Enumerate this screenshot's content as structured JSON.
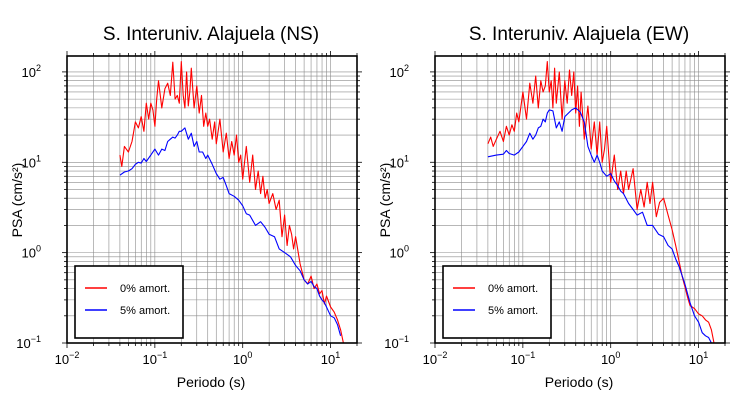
{
  "chart_data": [
    {
      "type": "line",
      "title": "S. Interuniv. Alajuela (NS)",
      "xlabel": "Periodo (s)",
      "ylabel": "PSA (cm/s²)",
      "xscale": "log",
      "yscale": "log",
      "xlim": [
        0.01,
        20
      ],
      "ylim": [
        0.1,
        150
      ],
      "grid": true,
      "legend_position": "bottom-left",
      "x_ticks": [
        {
          "value": 0.01,
          "base": "10",
          "exp": "−2"
        },
        {
          "value": 0.1,
          "base": "10",
          "exp": "−1"
        },
        {
          "value": 1,
          "base": "10",
          "exp": "0"
        },
        {
          "value": 10,
          "base": "10",
          "exp": "1"
        }
      ],
      "y_ticks": [
        {
          "value": 0.1,
          "label": "10",
          "exp": "−1"
        },
        {
          "value": 1,
          "label": "10",
          "exp": "0"
        },
        {
          "value": 10,
          "label": "10",
          "exp": "1"
        },
        {
          "value": 100,
          "label": "10",
          "exp": "2"
        }
      ],
      "series": [
        {
          "name": "0% amort.",
          "color": "#ff0000",
          "x": [
            0.04,
            0.042,
            0.045,
            0.05,
            0.055,
            0.06,
            0.065,
            0.07,
            0.075,
            0.08,
            0.085,
            0.09,
            0.095,
            0.1,
            0.105,
            0.11,
            0.12,
            0.13,
            0.14,
            0.15,
            0.16,
            0.17,
            0.18,
            0.19,
            0.2,
            0.21,
            0.22,
            0.23,
            0.24,
            0.25,
            0.26,
            0.28,
            0.3,
            0.32,
            0.34,
            0.36,
            0.38,
            0.4,
            0.42,
            0.45,
            0.48,
            0.5,
            0.55,
            0.6,
            0.65,
            0.7,
            0.75,
            0.8,
            0.85,
            0.9,
            0.95,
            1.0,
            1.1,
            1.2,
            1.3,
            1.4,
            1.5,
            1.6,
            1.7,
            1.8,
            1.9,
            2.0,
            2.2,
            2.4,
            2.6,
            2.8,
            3.0,
            3.2,
            3.4,
            3.6,
            3.8,
            4.0,
            4.5,
            5.0,
            5.5,
            6.0,
            6.5,
            7.0,
            7.5,
            8.0,
            8.5,
            9.0,
            10,
            11,
            12,
            13,
            14
          ],
          "y": [
            12,
            9,
            15,
            13,
            17,
            28,
            24,
            32,
            22,
            45,
            30,
            45,
            38,
            25,
            50,
            80,
            40,
            65,
            75,
            55,
            128,
            50,
            55,
            45,
            130,
            55,
            40,
            100,
            42,
            60,
            110,
            40,
            70,
            35,
            55,
            25,
            35,
            25,
            30,
            18,
            28,
            16,
            30,
            13,
            21,
            11,
            17,
            12,
            20,
            10,
            12,
            6.5,
            15,
            6,
            12,
            5,
            8,
            4.5,
            7,
            4,
            5,
            3.5,
            4.5,
            3,
            3.8,
            1.5,
            2.6,
            1.2,
            2,
            1.6,
            1.1,
            1.5,
            0.75,
            0.5,
            0.45,
            0.55,
            0.4,
            0.45,
            0.35,
            0.38,
            0.27,
            0.33,
            0.25,
            0.22,
            0.18,
            0.14,
            0.1
          ]
        },
        {
          "name": "5% amort.",
          "color": "#0000ff",
          "x": [
            0.04,
            0.045,
            0.05,
            0.055,
            0.06,
            0.065,
            0.07,
            0.075,
            0.08,
            0.09,
            0.1,
            0.11,
            0.12,
            0.13,
            0.14,
            0.15,
            0.16,
            0.17,
            0.18,
            0.19,
            0.2,
            0.22,
            0.24,
            0.26,
            0.28,
            0.3,
            0.32,
            0.35,
            0.38,
            0.4,
            0.45,
            0.5,
            0.55,
            0.6,
            0.65,
            0.7,
            0.8,
            0.9,
            1.0,
            1.1,
            1.2,
            1.4,
            1.6,
            1.8,
            2.0,
            2.3,
            2.6,
            3.0,
            3.5,
            4.0,
            4.5,
            5.0,
            5.5,
            6.0,
            6.5,
            7.0,
            7.5,
            8.0,
            8.5,
            9.0,
            10,
            11,
            12,
            13
          ],
          "y": [
            7.2,
            7.8,
            8.0,
            8.5,
            9.5,
            10,
            9.8,
            11,
            10.2,
            12,
            14,
            12,
            14,
            13.5,
            17,
            18,
            19,
            18.5,
            20,
            22,
            22,
            24,
            18,
            21,
            15,
            17,
            13,
            13,
            11,
            12,
            9.5,
            7.5,
            6.5,
            6.8,
            5.5,
            4.5,
            4.2,
            3.8,
            3.3,
            2.7,
            2.6,
            2.0,
            2.2,
            1.9,
            1.6,
            1.5,
            1.1,
            1.0,
            0.9,
            0.72,
            0.63,
            0.5,
            0.45,
            0.48,
            0.42,
            0.4,
            0.33,
            0.3,
            0.28,
            0.25,
            0.2,
            0.19,
            0.16,
            0.12
          ]
        }
      ]
    },
    {
      "type": "line",
      "title": "S. Interuniv. Alajuela (EW)",
      "xlabel": "Periodo (s)",
      "ylabel": "PSA (cm/s²)",
      "xscale": "log",
      "yscale": "log",
      "xlim": [
        0.01,
        20
      ],
      "ylim": [
        0.1,
        150
      ],
      "grid": true,
      "legend_position": "bottom-left",
      "x_ticks": [
        {
          "value": 0.01,
          "base": "10",
          "exp": "−2"
        },
        {
          "value": 0.1,
          "base": "10",
          "exp": "−1"
        },
        {
          "value": 1,
          "base": "10",
          "exp": "0"
        },
        {
          "value": 10,
          "base": "10",
          "exp": "1"
        }
      ],
      "y_ticks": [
        {
          "value": 0.1,
          "label": "10",
          "exp": "−1"
        },
        {
          "value": 1,
          "label": "10",
          "exp": "0"
        },
        {
          "value": 10,
          "label": "10",
          "exp": "1"
        },
        {
          "value": 100,
          "label": "10",
          "exp": "2"
        }
      ],
      "series": [
        {
          "name": "0% amort.",
          "color": "#ff0000",
          "x": [
            0.04,
            0.043,
            0.046,
            0.05,
            0.055,
            0.06,
            0.065,
            0.07,
            0.075,
            0.08,
            0.085,
            0.09,
            0.1,
            0.11,
            0.12,
            0.13,
            0.14,
            0.15,
            0.16,
            0.17,
            0.18,
            0.19,
            0.2,
            0.21,
            0.22,
            0.23,
            0.24,
            0.26,
            0.28,
            0.3,
            0.32,
            0.34,
            0.36,
            0.38,
            0.4,
            0.42,
            0.44,
            0.46,
            0.5,
            0.55,
            0.6,
            0.65,
            0.7,
            0.75,
            0.8,
            0.85,
            0.9,
            1.0,
            1.1,
            1.2,
            1.3,
            1.4,
            1.5,
            1.6,
            1.8,
            2.0,
            2.2,
            2.4,
            2.6,
            2.8,
            3.0,
            3.3,
            3.6,
            4.0,
            4.5,
            5.0,
            5.5,
            6.0,
            6.5,
            7.0,
            7.5,
            8.0,
            9.0,
            10,
            11,
            12,
            13,
            14,
            15
          ],
          "y": [
            16,
            19,
            15,
            18,
            22,
            17,
            25,
            20,
            26,
            22,
            35,
            28,
            60,
            30,
            75,
            45,
            90,
            40,
            80,
            60,
            70,
            130,
            60,
            80,
            40,
            110,
            45,
            100,
            30,
            80,
            45,
            105,
            55,
            100,
            35,
            70,
            25,
            60,
            18,
            42,
            14,
            28,
            12,
            28,
            10,
            14,
            25,
            6,
            12,
            5,
            8,
            4.5,
            8,
            5,
            8.5,
            3,
            5,
            3.2,
            6,
            3.5,
            6,
            2.5,
            3.6,
            4,
            2.6,
            1.8,
            1.2,
            0.8,
            0.55,
            0.42,
            0.32,
            0.26,
            0.24,
            0.21,
            0.2,
            0.18,
            0.17,
            0.14,
            0.1
          ]
        },
        {
          "name": "5% amort.",
          "color": "#0000ff",
          "x": [
            0.04,
            0.05,
            0.06,
            0.065,
            0.07,
            0.08,
            0.09,
            0.1,
            0.11,
            0.12,
            0.13,
            0.14,
            0.15,
            0.16,
            0.17,
            0.18,
            0.19,
            0.2,
            0.22,
            0.24,
            0.26,
            0.28,
            0.3,
            0.33,
            0.36,
            0.4,
            0.45,
            0.5,
            0.55,
            0.6,
            0.65,
            0.7,
            0.75,
            0.8,
            0.9,
            1.0,
            1.1,
            1.2,
            1.3,
            1.4,
            1.6,
            1.8,
            2.0,
            2.3,
            2.6,
            3.0,
            3.5,
            4.0,
            4.5,
            5.0,
            5.5,
            6.0,
            7.0,
            8.0,
            9.0,
            10,
            11,
            12,
            13,
            14
          ],
          "y": [
            11.5,
            12,
            12.3,
            13.5,
            12.5,
            12,
            13,
            15,
            17,
            21,
            18,
            20,
            24,
            25,
            30,
            28,
            35,
            38,
            37,
            24,
            28,
            22,
            32,
            35,
            38,
            40,
            36,
            28,
            15,
            12,
            10,
            12,
            10,
            8,
            7,
            7.5,
            6.2,
            5.5,
            4.8,
            4.5,
            3.5,
            3.0,
            2.6,
            2.8,
            2.0,
            2.0,
            1.6,
            1.5,
            1.2,
            1.1,
            0.85,
            0.7,
            0.45,
            0.28,
            0.2,
            0.17,
            0.13,
            0.12,
            0.115,
            0.1
          ]
        }
      ]
    }
  ]
}
